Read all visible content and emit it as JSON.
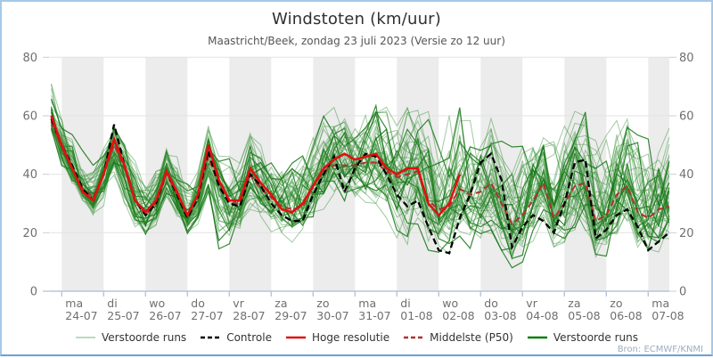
{
  "header": {
    "title": "Windstoten (km/uur)",
    "subtitle": "Maastricht/Beek, zondag 23 juli 2023 (Versie zo 12 uur)"
  },
  "footer": {
    "source": "Bron: ECMWF/KNMI"
  },
  "legend": {
    "items": [
      {
        "label": "Verstoorde runs",
        "color": "#a3cfa3",
        "dash": "",
        "width": 1.6
      },
      {
        "label": "Controle",
        "color": "#000000",
        "dash": "5,3",
        "width": 2.4
      },
      {
        "label": "Hoge resolutie",
        "color": "#e01010",
        "dash": "",
        "width": 2.6
      },
      {
        "label": "Middelste (P50)",
        "color": "#b03030",
        "dash": "5,3",
        "width": 2.4
      },
      {
        "label": "Verstoorde runs",
        "color": "#0e7c0e",
        "dash": "",
        "width": 2.6
      }
    ]
  },
  "chart_data": {
    "type": "line",
    "title": "Windstoten (km/uur)",
    "subtitle": "Maastricht/Beek, zondag 23 juli 2023 (Versie zo 12 uur)",
    "ylabel": "km/uur",
    "ylim": [
      0,
      80
    ],
    "yticks": [
      0,
      20,
      40,
      60,
      80
    ],
    "grid": "horizontal",
    "legend_position": "bottom",
    "x_axis": {
      "t_start_hours": 6,
      "t_step_hours": 6,
      "t_count": 60,
      "t_end_hours": 360,
      "day_tick_first_hours": 12,
      "day_tick_interval_hours": 24,
      "day_tick_count": 15
    },
    "day_labels": [
      {
        "dow": "ma",
        "date": "24-07"
      },
      {
        "dow": "di",
        "date": "25-07"
      },
      {
        "dow": "wo",
        "date": "26-07"
      },
      {
        "dow": "do",
        "date": "27-07"
      },
      {
        "dow": "vr",
        "date": "28-07"
      },
      {
        "dow": "za",
        "date": "29-07"
      },
      {
        "dow": "zo",
        "date": "30-07"
      },
      {
        "dow": "ma",
        "date": "31-07"
      },
      {
        "dow": "di",
        "date": "01-08"
      },
      {
        "dow": "wo",
        "date": "02-08"
      },
      {
        "dow": "do",
        "date": "03-08"
      },
      {
        "dow": "vr",
        "date": "04-08"
      },
      {
        "dow": "za",
        "date": "05-08"
      },
      {
        "dow": "zo",
        "date": "06-08"
      },
      {
        "dow": "ma",
        "date": "07-08"
      }
    ],
    "series": [
      {
        "name": "Controle",
        "style": "dashed",
        "color": "#000000",
        "values": [
          59,
          50,
          43,
          35,
          31,
          40,
          57,
          43,
          31,
          26,
          30,
          41,
          33,
          25,
          32,
          48,
          36,
          30,
          29,
          40,
          36,
          30,
          26,
          24,
          24,
          33,
          40,
          46,
          34,
          42,
          47,
          46,
          40,
          33,
          29,
          31,
          22,
          14,
          13,
          25,
          33,
          44,
          47,
          38,
          15,
          22,
          26,
          24,
          20,
          30,
          44,
          45,
          18,
          21,
          26,
          28,
          22,
          14,
          17,
          20
        ]
      },
      {
        "name": "Hoge resolutie",
        "style": "solid",
        "color": "#e01010",
        "values": [
          60,
          50,
          42,
          34,
          31,
          40,
          52,
          43,
          31,
          27,
          31,
          41,
          34,
          26,
          33,
          50,
          38,
          31,
          31,
          42,
          37,
          33,
          28,
          27,
          30,
          36,
          42,
          45,
          47,
          45,
          46,
          47,
          42,
          40,
          42,
          42,
          30,
          26,
          30,
          40
        ]
      },
      {
        "name": "Middelste (P50)",
        "style": "dashed",
        "color": "#b03030",
        "values": [
          58,
          49,
          42,
          35,
          32,
          40,
          50,
          42,
          31,
          26,
          30,
          40,
          33,
          26,
          32,
          46,
          36,
          30,
          30,
          40,
          35,
          32,
          29,
          28,
          29,
          36,
          41,
          43,
          43,
          43,
          44,
          44,
          41,
          39,
          40,
          41,
          31,
          28,
          29,
          35,
          33,
          34,
          37,
          30,
          23,
          26,
          31,
          37,
          25,
          30,
          36,
          37,
          24,
          26,
          33,
          36,
          27,
          25,
          28,
          29
        ]
      }
    ],
    "ensemble": {
      "name": "Verstoorde runs",
      "count": 50,
      "color_line": "#2e8b2e",
      "color_dark": "#157515",
      "envelope_min": [
        54,
        42,
        36,
        30,
        25,
        28,
        34,
        28,
        22,
        18,
        20,
        30,
        24,
        18,
        22,
        32,
        14,
        16,
        20,
        26,
        22,
        20,
        16,
        16,
        16,
        22,
        26,
        28,
        26,
        26,
        28,
        28,
        24,
        18,
        16,
        20,
        14,
        10,
        12,
        16,
        14,
        16,
        18,
        14,
        8,
        10,
        14,
        16,
        12,
        14,
        18,
        16,
        10,
        12,
        16,
        18,
        12,
        10,
        12,
        14
      ],
      "envelope_max": [
        74,
        62,
        56,
        48,
        44,
        50,
        60,
        52,
        45,
        40,
        44,
        52,
        48,
        42,
        46,
        58,
        48,
        46,
        50,
        55,
        50,
        48,
        46,
        48,
        50,
        54,
        60,
        64,
        62,
        60,
        64,
        68,
        64,
        58,
        70,
        66,
        62,
        52,
        64,
        70,
        60,
        58,
        66,
        58,
        50,
        52,
        56,
        60,
        54,
        58,
        64,
        66,
        56,
        56,
        62,
        64,
        56,
        52,
        56,
        62
      ]
    },
    "colors": {
      "band": "#ececec",
      "grid": "#e2e2e2",
      "axis": "#b7c6da",
      "tick_label": "#6f6f6f"
    }
  }
}
